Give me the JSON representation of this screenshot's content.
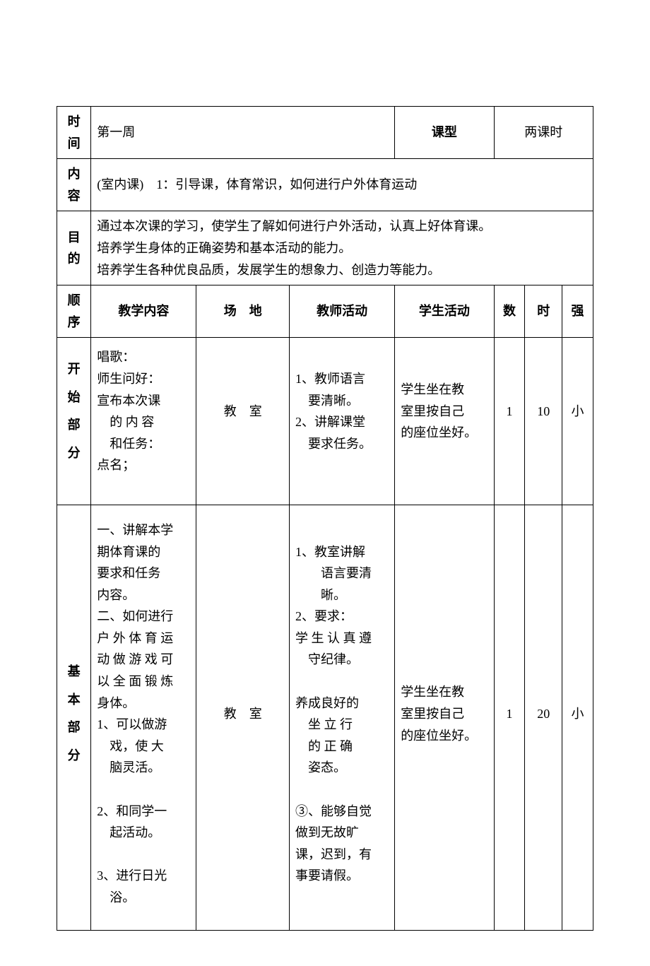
{
  "header": {
    "time_label": "时间",
    "time_value": "第一周",
    "type_label": "课型",
    "type_value": "两课时",
    "content_label": "内容",
    "content_value": "(室内课)　1：引导课，体育常识，如何进行户外体育运动",
    "goal_label": "目的",
    "goal_value": "通过本次课的学习，使学生了解如何进行户外活动，认真上好体育课。\n培养学生身体的正确姿势和基本活动的能力。\n培养学生各种优良品质，发展学生的想象力、创造力等能力。"
  },
  "columns": {
    "order": "顺序",
    "teach_content": "教学内容",
    "place": "场　地",
    "teacher_act": "教师活动",
    "student_act": "学生活动",
    "count": "数",
    "time": "时",
    "strength": "强"
  },
  "sections": [
    {
      "label": "开\n始\n部\n分",
      "content": "唱歌：\n师生问好：\n宣布本次课\n　的 内 容\n　和任务：\n点名；",
      "place": "教　室",
      "teacher": "1、教师语言\n　要清晰。\n2、讲解课堂\n　要求任务。",
      "student": "学生坐在教\n室里按自己\n的座位坐好。",
      "count": "1",
      "time": "10",
      "strength": "小"
    },
    {
      "label": "基\n本\n部\n分",
      "content": "一、讲解本学\n期体育课的\n要求和任务\n内容。\n二、如何进行\n户 外 体 育 运\n动 做 游 戏 可\n以 全 面 锻 炼\n身体。\n1、可以做游\n　戏，使 大\n　脑灵活。\n\n2、和同学一\n　起活动。\n\n3、进行日光\n　浴。",
      "place": "教　室",
      "teacher": "1、教室讲解\n　　语言要清\n　　晰。\n2、要求：\n学 生 认 真 遵\n　守纪律。\n\n养成良好的\n　坐 立 行\n　的 正 确\n　姿态。\n\n③、能够自觉\n做到无故旷\n课，迟到，有\n事要请假。",
      "student": "学生坐在教\n室里按自己\n的座位坐好。",
      "count": "1",
      "time": "20",
      "strength": "小"
    }
  ],
  "styling": {
    "font_family": "SimSun",
    "body_fontsize": 18,
    "border_color": "#000000",
    "background_color": "#ffffff",
    "text_color": "#000000"
  }
}
